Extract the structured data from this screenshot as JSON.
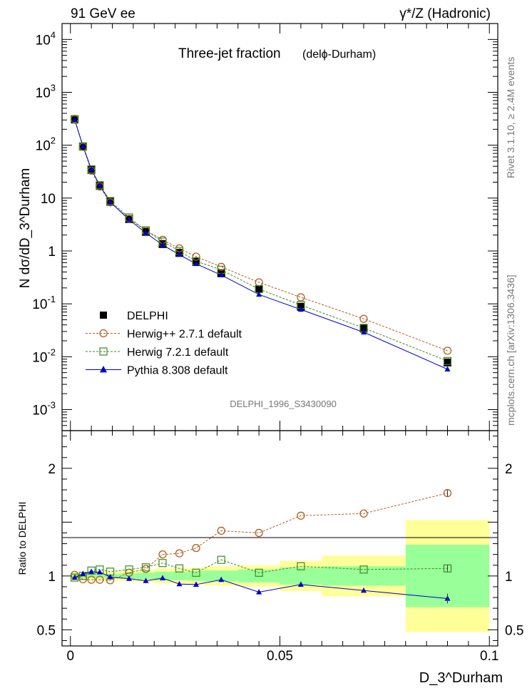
{
  "header": {
    "left": "91 GeV ee",
    "right": "γ*/Z (Hadronic)"
  },
  "plot_title": "Three-jet fraction",
  "plot_subtitle": "(delϕ-Durham)",
  "analysis_id": "DELPHI_1996_S3430090",
  "side_text_top": "Rivet 3.1.10, ≥ 2.4M events",
  "side_text_bottom": "mcplots.cern.ch [arXiv:1306.3436]",
  "main_ylabel": "N dσ/dD_3^Durham",
  "ratio_ylabel": "Ratio to DELPHI",
  "xlabel": "D_3^Durham",
  "legend": [
    {
      "label": "DELPHI",
      "color": "#000000",
      "marker": "filled-square"
    },
    {
      "label": "Herwig++ 2.7.1 default",
      "color": "#b35c1e",
      "marker": "open-circle"
    },
    {
      "label": "Herwig 7.2.1 default",
      "color": "#3d8a1e",
      "marker": "open-square"
    },
    {
      "label": "Pythia 8.308 default",
      "color": "#0000cc",
      "marker": "filled-triangle"
    }
  ],
  "chart_data": [
    {
      "type": "line",
      "title": "Three-jet fraction (delϕ-Durham)",
      "xlabel": "D_3^Durham",
      "ylabel": "N dσ/dD_3^Durham",
      "xlim": [
        -0.002,
        0.102
      ],
      "ylim": [
        0.0004,
        20000
      ],
      "yscale": "log",
      "x_ticks": [
        "0",
        "0.05",
        "0.1"
      ],
      "y_ticks": [
        "10^-3",
        "10^-2",
        "10^-1",
        "1",
        "10",
        "10^2",
        "10^3",
        "10^4"
      ],
      "x": [
        0.001,
        0.003,
        0.005,
        0.007,
        0.0095,
        0.014,
        0.018,
        0.022,
        0.026,
        0.03,
        0.036,
        0.045,
        0.055,
        0.07,
        0.09
      ],
      "series": [
        {
          "name": "DELPHI",
          "values": [
            310,
            95,
            34,
            17,
            8.5,
            4.0,
            2.3,
            1.35,
            0.92,
            0.62,
            0.38,
            0.19,
            0.088,
            0.034,
            0.0078
          ]
        },
        {
          "name": "Herwig++ 2.7.1 default",
          "values": [
            315,
            93,
            33,
            16.5,
            8.3,
            4.05,
            2.45,
            1.62,
            1.12,
            0.78,
            0.5,
            0.255,
            0.133,
            0.052,
            0.013
          ]
        },
        {
          "name": "Herwig 7.2.1 default",
          "values": [
            305,
            94,
            35,
            17.5,
            8.8,
            4.3,
            2.45,
            1.5,
            1.0,
            0.64,
            0.44,
            0.19,
            0.095,
            0.035,
            0.0083
          ]
        },
        {
          "name": "Pythia 8.308 default",
          "values": [
            305,
            96,
            35,
            17.3,
            8.4,
            3.9,
            2.2,
            1.3,
            0.85,
            0.57,
            0.35,
            0.15,
            0.078,
            0.029,
            0.0058
          ]
        }
      ]
    },
    {
      "type": "line",
      "ylabel": "Ratio to DELPHI",
      "xlabel": "D_3^Durham",
      "xlim": [
        -0.002,
        0.102
      ],
      "ylim": [
        0.35,
        2.35
      ],
      "y_ticks": [
        "0.5",
        "1",
        "2"
      ],
      "x": [
        0.001,
        0.003,
        0.005,
        0.007,
        0.0095,
        0.014,
        0.018,
        0.022,
        0.026,
        0.03,
        0.036,
        0.045,
        0.055,
        0.07,
        0.09
      ],
      "band_bins": [
        {
          "x0": 0.0,
          "x1": 0.002,
          "stat": 0.02,
          "tot": 0.04
        },
        {
          "x0": 0.002,
          "x1": 0.004,
          "stat": 0.02,
          "tot": 0.04
        },
        {
          "x0": 0.004,
          "x1": 0.006,
          "stat": 0.02,
          "tot": 0.04
        },
        {
          "x0": 0.006,
          "x1": 0.008,
          "stat": 0.02,
          "tot": 0.04
        },
        {
          "x0": 0.008,
          "x1": 0.012,
          "stat": 0.02,
          "tot": 0.045
        },
        {
          "x0": 0.012,
          "x1": 0.016,
          "stat": 0.025,
          "tot": 0.05
        },
        {
          "x0": 0.016,
          "x1": 0.02,
          "stat": 0.03,
          "tot": 0.055
        },
        {
          "x0": 0.02,
          "x1": 0.024,
          "stat": 0.04,
          "tot": 0.07
        },
        {
          "x0": 0.024,
          "x1": 0.028,
          "stat": 0.04,
          "tot": 0.07
        },
        {
          "x0": 0.028,
          "x1": 0.032,
          "stat": 0.045,
          "tot": 0.075
        },
        {
          "x0": 0.032,
          "x1": 0.04,
          "stat": 0.05,
          "tot": 0.09
        },
        {
          "x0": 0.04,
          "x1": 0.05,
          "stat": 0.06,
          "tot": 0.1
        },
        {
          "x0": 0.05,
          "x1": 0.06,
          "stat": 0.08,
          "tot": 0.14
        },
        {
          "x0": 0.06,
          "x1": 0.08,
          "stat": 0.09,
          "tot": 0.19
        },
        {
          "x0": 0.08,
          "x1": 0.1,
          "stat": 0.29,
          "tot": 0.52
        }
      ],
      "series": [
        {
          "name": "Herwig++ 2.7.1 default",
          "values": [
            1.01,
            0.97,
            0.965,
            0.965,
            0.96,
            1.03,
            1.065,
            1.2,
            1.21,
            1.26,
            1.42,
            1.4,
            1.56,
            1.58,
            1.77
          ]
        },
        {
          "name": "Herwig 7.2.1 default",
          "values": [
            0.985,
            1.0,
            1.05,
            1.06,
            1.04,
            1.06,
            1.08,
            1.12,
            1.07,
            1.03,
            1.15,
            1.03,
            1.09,
            1.06,
            1.07
          ]
        },
        {
          "name": "Pythia 8.308 default",
          "values": [
            0.985,
            1.02,
            1.04,
            1.035,
            0.99,
            0.975,
            0.955,
            0.98,
            0.925,
            0.92,
            0.965,
            0.85,
            0.92,
            0.865,
            0.79
          ]
        }
      ]
    }
  ]
}
